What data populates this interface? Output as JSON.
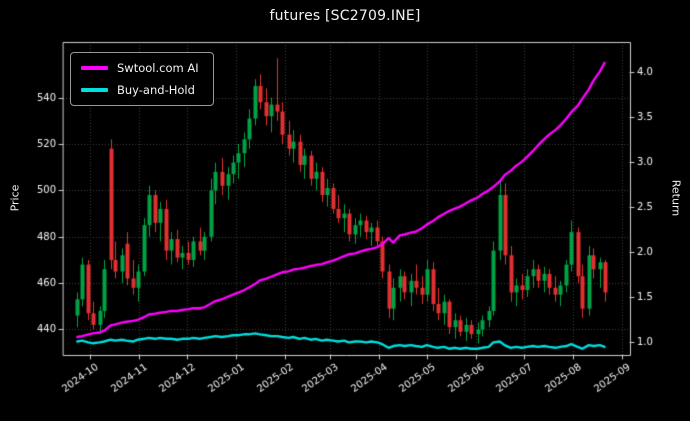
{
  "colors": {
    "background": "#000000",
    "text": "#f2f2f2",
    "grid": "#3d3d3d",
    "spine": "#cfcfcf",
    "candle_up": "#00a246",
    "candle_down": "#e23030",
    "ai_line": "#ff00ff",
    "buy_hold_line": "#00dede"
  },
  "chart_data": {
    "type": "candlestick",
    "title": "futures [SC2709.INE]",
    "ylabel_left": "Price",
    "ylabel_right": "Return",
    "grid": "dotted",
    "legend_position": "upper-left",
    "price_ticks": [
      440,
      460,
      480,
      500,
      520,
      540
    ],
    "return_ticks": [
      1.0,
      1.5,
      2.0,
      2.5,
      3.0,
      3.5,
      4.0
    ],
    "x_tick_labels": [
      "2024-10",
      "2024-11",
      "2024-12",
      "2025-01",
      "2025-02",
      "2025-03",
      "2025-04",
      "2025-05",
      "2025-06",
      "2025-07",
      "2025-08",
      "2025-09"
    ],
    "price_range": [
      429,
      564
    ],
    "return_range": [
      0.85,
      4.33
    ],
    "x_range": [
      "2024-09-14",
      "2025-09-06"
    ],
    "candle_columns": [
      "date",
      "open",
      "high",
      "low",
      "close"
    ],
    "candles": [
      [
        "2024-09-23",
        446,
        456,
        441,
        453
      ],
      [
        "2024-09-26",
        453,
        471,
        450,
        468
      ],
      [
        "2024-09-30",
        468,
        470,
        444,
        447
      ],
      [
        "2024-10-03",
        447,
        452,
        440,
        442
      ],
      [
        "2024-10-07",
        442,
        450,
        438,
        448
      ],
      [
        "2024-10-10",
        448,
        470,
        445,
        466
      ],
      [
        "2024-10-14",
        518,
        522,
        466,
        470
      ],
      [
        "2024-10-17",
        470,
        478,
        462,
        465
      ],
      [
        "2024-10-21",
        465,
        475,
        460,
        472
      ],
      [
        "2024-10-24",
        477,
        482,
        459,
        462
      ],
      [
        "2024-10-28",
        462,
        470,
        455,
        458
      ],
      [
        "2024-10-31",
        458,
        468,
        452,
        465
      ],
      [
        "2024-11-04",
        465,
        488,
        463,
        485
      ],
      [
        "2024-11-07",
        485,
        502,
        480,
        498
      ],
      [
        "2024-11-11",
        498,
        500,
        482,
        486
      ],
      [
        "2024-11-14",
        486,
        495,
        478,
        492
      ],
      [
        "2024-11-18",
        492,
        496,
        470,
        474
      ],
      [
        "2024-11-21",
        474,
        482,
        468,
        479
      ],
      [
        "2024-11-25",
        479,
        483,
        469,
        471
      ],
      [
        "2024-11-28",
        471,
        476,
        466,
        473
      ],
      [
        "2024-12-02",
        473,
        478,
        468,
        470
      ],
      [
        "2024-12-05",
        470,
        480,
        467,
        478
      ],
      [
        "2024-12-09",
        478,
        484,
        472,
        474
      ],
      [
        "2024-12-12",
        474,
        482,
        470,
        480
      ],
      [
        "2024-12-16",
        480,
        505,
        478,
        500
      ],
      [
        "2024-12-19",
        500,
        512,
        494,
        508
      ],
      [
        "2024-12-23",
        508,
        514,
        498,
        502
      ],
      [
        "2024-12-27",
        502,
        510,
        496,
        507
      ],
      [
        "2024-12-30",
        507,
        515,
        503,
        512
      ],
      [
        "2025-01-02",
        512,
        520,
        505,
        516
      ],
      [
        "2025-01-06",
        516,
        525,
        510,
        522
      ],
      [
        "2025-01-09",
        522,
        535,
        518,
        531
      ],
      [
        "2025-01-13",
        531,
        548,
        528,
        545
      ],
      [
        "2025-01-16",
        545,
        550,
        535,
        538
      ],
      [
        "2025-01-20",
        538,
        544,
        528,
        532
      ],
      [
        "2025-01-23",
        532,
        540,
        525,
        537
      ],
      [
        "2025-01-27",
        537,
        557,
        530,
        534
      ],
      [
        "2025-01-30",
        534,
        538,
        520,
        524
      ],
      [
        "2025-02-03",
        524,
        530,
        515,
        518
      ],
      [
        "2025-02-06",
        518,
        526,
        512,
        521
      ],
      [
        "2025-02-10",
        521,
        524,
        508,
        511
      ],
      [
        "2025-02-13",
        511,
        518,
        505,
        515
      ],
      [
        "2025-02-17",
        515,
        517,
        502,
        505
      ],
      [
        "2025-02-20",
        505,
        512,
        500,
        508
      ],
      [
        "2025-02-24",
        508,
        510,
        495,
        498
      ],
      [
        "2025-02-27",
        498,
        505,
        493,
        501
      ],
      [
        "2025-03-03",
        501,
        503,
        490,
        492
      ],
      [
        "2025-03-06",
        492,
        498,
        486,
        488
      ],
      [
        "2025-03-10",
        488,
        494,
        482,
        490
      ],
      [
        "2025-03-13",
        490,
        492,
        478,
        481
      ],
      [
        "2025-03-17",
        481,
        488,
        477,
        485
      ],
      [
        "2025-03-20",
        485,
        490,
        480,
        487
      ],
      [
        "2025-03-24",
        487,
        489,
        479,
        482
      ],
      [
        "2025-03-27",
        482,
        486,
        476,
        484
      ],
      [
        "2025-03-31",
        484,
        487,
        475,
        478
      ],
      [
        "2025-04-03",
        478,
        480,
        462,
        465
      ],
      [
        "2025-04-07",
        465,
        468,
        445,
        449
      ],
      [
        "2025-04-10",
        449,
        462,
        444,
        458
      ],
      [
        "2025-04-14",
        458,
        466,
        452,
        463
      ],
      [
        "2025-04-17",
        463,
        465,
        453,
        456
      ],
      [
        "2025-04-21",
        456,
        464,
        450,
        461
      ],
      [
        "2025-04-24",
        461,
        468,
        455,
        458
      ],
      [
        "2025-04-28",
        458,
        463,
        451,
        455
      ],
      [
        "2025-05-01",
        455,
        470,
        452,
        466
      ],
      [
        "2025-05-05",
        466,
        469,
        448,
        451
      ],
      [
        "2025-05-08",
        451,
        458,
        444,
        447
      ],
      [
        "2025-05-12",
        447,
        455,
        442,
        452
      ],
      [
        "2025-05-15",
        452,
        453,
        438,
        441
      ],
      [
        "2025-05-19",
        441,
        447,
        436,
        444
      ],
      [
        "2025-05-22",
        444,
        446,
        437,
        439
      ],
      [
        "2025-05-26",
        439,
        445,
        435,
        442
      ],
      [
        "2025-05-29",
        442,
        444,
        436,
        438
      ],
      [
        "2025-06-02",
        438,
        443,
        434,
        440
      ],
      [
        "2025-06-05",
        440,
        446,
        437,
        444
      ],
      [
        "2025-06-09",
        444,
        450,
        441,
        448
      ],
      [
        "2025-06-12",
        448,
        478,
        446,
        474
      ],
      [
        "2025-06-16",
        474,
        505,
        470,
        498
      ],
      [
        "2025-06-19",
        498,
        503,
        468,
        472
      ],
      [
        "2025-06-23",
        472,
        476,
        452,
        456
      ],
      [
        "2025-06-26",
        456,
        462,
        450,
        459
      ],
      [
        "2025-06-30",
        459,
        464,
        453,
        457
      ],
      [
        "2025-07-03",
        457,
        466,
        454,
        463
      ],
      [
        "2025-07-07",
        463,
        470,
        458,
        466
      ],
      [
        "2025-07-10",
        466,
        468,
        458,
        461
      ],
      [
        "2025-07-14",
        461,
        467,
        456,
        464
      ],
      [
        "2025-07-17",
        464,
        466,
        455,
        458
      ],
      [
        "2025-07-21",
        458,
        463,
        452,
        455
      ],
      [
        "2025-07-24",
        455,
        461,
        450,
        459
      ],
      [
        "2025-07-28",
        459,
        470,
        456,
        468
      ],
      [
        "2025-07-31",
        468,
        487,
        465,
        482
      ],
      [
        "2025-08-04",
        482,
        484,
        460,
        463
      ],
      [
        "2025-08-07",
        463,
        468,
        445,
        449
      ],
      [
        "2025-08-11",
        449,
        476,
        446,
        472
      ],
      [
        "2025-08-14",
        472,
        475,
        462,
        466
      ],
      [
        "2025-08-18",
        466,
        471,
        458,
        469
      ],
      [
        "2025-08-21",
        469,
        470,
        452,
        456
      ]
    ],
    "overlay_series": [
      {
        "name": "Swtool.com AI",
        "axis": "return",
        "color": "#ff00ff",
        "values": [
          1.05,
          1.06,
          1.08,
          1.09,
          1.1,
          1.12,
          1.18,
          1.19,
          1.21,
          1.22,
          1.23,
          1.24,
          1.27,
          1.3,
          1.31,
          1.32,
          1.33,
          1.34,
          1.34,
          1.35,
          1.36,
          1.37,
          1.37,
          1.38,
          1.42,
          1.45,
          1.47,
          1.5,
          1.52,
          1.54,
          1.57,
          1.6,
          1.64,
          1.68,
          1.7,
          1.72,
          1.75,
          1.77,
          1.78,
          1.8,
          1.81,
          1.82,
          1.84,
          1.85,
          1.86,
          1.88,
          1.9,
          1.92,
          1.95,
          1.97,
          1.98,
          2.0,
          2.02,
          2.03,
          2.05,
          2.08,
          2.15,
          2.1,
          2.18,
          2.19,
          2.21,
          2.22,
          2.26,
          2.3,
          2.34,
          2.38,
          2.42,
          2.45,
          2.48,
          2.5,
          2.54,
          2.57,
          2.6,
          2.64,
          2.68,
          2.72,
          2.78,
          2.85,
          2.9,
          2.95,
          3.0,
          3.05,
          3.12,
          3.18,
          3.25,
          3.3,
          3.35,
          3.4,
          3.48,
          3.55,
          3.62,
          3.7,
          3.8,
          3.9,
          4.0,
          4.1
        ]
      },
      {
        "name": "Buy-and-Hold",
        "axis": "return",
        "color": "#00dede",
        "values": [
          1.0,
          1.01,
          0.99,
          0.98,
          0.99,
          1.0,
          1.02,
          1.01,
          1.02,
          1.01,
          1.0,
          1.02,
          1.03,
          1.04,
          1.03,
          1.04,
          1.03,
          1.03,
          1.02,
          1.03,
          1.03,
          1.04,
          1.03,
          1.04,
          1.05,
          1.06,
          1.05,
          1.06,
          1.07,
          1.07,
          1.08,
          1.08,
          1.09,
          1.08,
          1.07,
          1.06,
          1.06,
          1.05,
          1.04,
          1.05,
          1.03,
          1.04,
          1.02,
          1.03,
          1.01,
          1.02,
          1.01,
          1.0,
          1.01,
          0.99,
          1.0,
          1.0,
          0.99,
          1.0,
          0.99,
          0.97,
          0.93,
          0.95,
          0.96,
          0.95,
          0.96,
          0.95,
          0.94,
          0.96,
          0.94,
          0.93,
          0.94,
          0.92,
          0.93,
          0.92,
          0.93,
          0.92,
          0.92,
          0.93,
          0.94,
          0.99,
          1.0,
          0.96,
          0.93,
          0.94,
          0.93,
          0.94,
          0.95,
          0.94,
          0.95,
          0.94,
          0.93,
          0.94,
          0.95,
          0.97,
          0.94,
          0.92,
          0.96,
          0.95,
          0.96,
          0.94
        ]
      }
    ]
  }
}
